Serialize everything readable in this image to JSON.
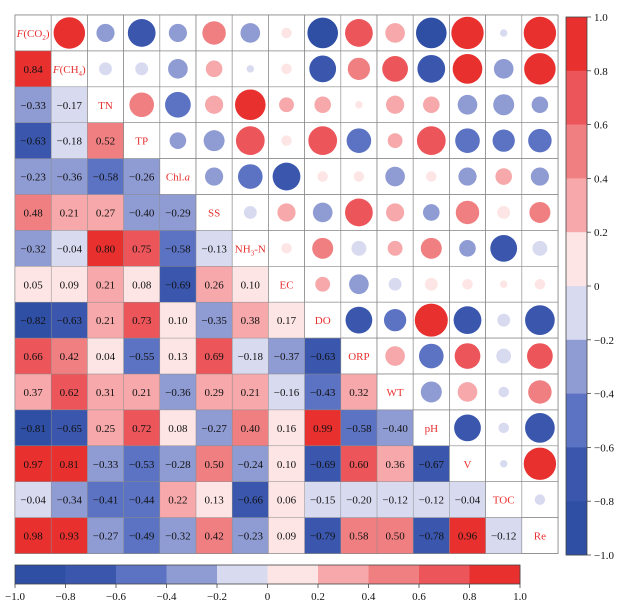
{
  "chart_data": {
    "type": "heatmap",
    "subtype": "correlation-matrix",
    "upper_triangle": "circles",
    "lower_triangle": "colored-cells-with-values",
    "variables": [
      {
        "text": "F(CO",
        "sub": "2",
        "suffix": ")",
        "italic_prefix": "F"
      },
      {
        "text": "F(CH",
        "sub": "4",
        "suffix": ")",
        "italic_prefix": "F"
      },
      {
        "text": "TN"
      },
      {
        "text": "TP"
      },
      {
        "text": "Chl.",
        "italic_suffix": "a"
      },
      {
        "text": "SS"
      },
      {
        "text": "NH",
        "sub": "3",
        "suffix": "-N"
      },
      {
        "text": "EC"
      },
      {
        "text": "DO"
      },
      {
        "text": "ORP"
      },
      {
        "text": "WT"
      },
      {
        "text": "pH"
      },
      {
        "text": "V"
      },
      {
        "text": "TOC"
      },
      {
        "text": "Re"
      }
    ],
    "lower_values": [
      [],
      [
        0.84
      ],
      [
        -0.33,
        -0.17
      ],
      [
        -0.63,
        -0.18,
        0.52
      ],
      [
        -0.23,
        -0.36,
        -0.58,
        -0.26
      ],
      [
        0.48,
        0.21,
        0.27,
        -0.4,
        -0.29
      ],
      [
        -0.32,
        -0.04,
        0.8,
        0.75,
        -0.58,
        -0.13
      ],
      [
        0.05,
        0.09,
        0.21,
        0.08,
        -0.69,
        0.26,
        0.1
      ],
      [
        -0.82,
        -0.63,
        0.21,
        0.73,
        0.1,
        -0.35,
        0.38,
        0.17
      ],
      [
        0.66,
        0.42,
        0.04,
        -0.55,
        0.13,
        0.69,
        -0.18,
        -0.37,
        -0.63
      ],
      [
        0.37,
        0.62,
        0.31,
        0.21,
        -0.36,
        0.29,
        0.21,
        -0.16,
        -0.43,
        0.32
      ],
      [
        -0.81,
        -0.65,
        0.25,
        0.72,
        0.08,
        -0.27,
        0.4,
        0.16,
        0.99,
        -0.58,
        -0.4
      ],
      [
        0.97,
        0.81,
        -0.33,
        -0.53,
        -0.28,
        0.5,
        -0.24,
        0.1,
        -0.69,
        0.6,
        0.36,
        -0.67
      ],
      [
        -0.04,
        -0.34,
        -0.41,
        -0.44,
        0.22,
        0.13,
        -0.66,
        0.06,
        -0.15,
        -0.2,
        -0.12,
        -0.12,
        -0.04
      ],
      [
        0.98,
        0.93,
        -0.27,
        -0.49,
        -0.32,
        0.42,
        -0.23,
        0.09,
        -0.79,
        0.58,
        0.5,
        -0.78,
        0.96,
        -0.12
      ]
    ],
    "upper_values": [
      [
        null,
        0.9,
        -0.3,
        -0.7,
        -0.3,
        0.5,
        -0.35,
        0.1,
        -0.85,
        0.7,
        0.35,
        -0.85,
        0.95,
        -0.05,
        0.95
      ],
      [
        null,
        null,
        -0.15,
        -0.15,
        -0.35,
        0.25,
        -0.05,
        0.1,
        -0.65,
        0.45,
        0.6,
        -0.7,
        0.8,
        -0.35,
        0.9
      ],
      [
        null,
        null,
        null,
        0.55,
        -0.6,
        0.3,
        0.85,
        0.2,
        0.25,
        0.05,
        0.3,
        0.25,
        -0.35,
        -0.4,
        -0.25
      ],
      [
        null,
        null,
        null,
        null,
        -0.25,
        -0.4,
        0.75,
        0.1,
        0.75,
        -0.55,
        0.2,
        0.75,
        -0.55,
        -0.45,
        -0.5
      ],
      [
        null,
        null,
        null,
        null,
        null,
        -0.3,
        -0.55,
        -0.7,
        0.1,
        0.1,
        -0.35,
        0.1,
        -0.3,
        0.25,
        -0.3
      ],
      [
        null,
        null,
        null,
        null,
        null,
        null,
        -0.15,
        0.3,
        -0.35,
        0.7,
        0.3,
        -0.25,
        0.5,
        0.15,
        0.4
      ],
      [
        null,
        null,
        null,
        null,
        null,
        null,
        null,
        0.1,
        0.4,
        -0.2,
        0.2,
        0.4,
        -0.25,
        -0.65,
        -0.2
      ],
      [
        null,
        null,
        null,
        null,
        null,
        null,
        null,
        null,
        0.2,
        -0.35,
        -0.15,
        0.15,
        0.1,
        0.05,
        0.1
      ],
      [
        null,
        null,
        null,
        null,
        null,
        null,
        null,
        null,
        null,
        -0.65,
        -0.45,
        0.99,
        -0.7,
        -0.15,
        -0.8
      ],
      [
        null,
        null,
        null,
        null,
        null,
        null,
        null,
        null,
        null,
        null,
        0.35,
        -0.55,
        0.6,
        -0.2,
        0.6
      ],
      [
        null,
        null,
        null,
        null,
        null,
        null,
        null,
        null,
        null,
        null,
        null,
        -0.4,
        0.35,
        -0.1,
        0.5
      ],
      [
        null,
        null,
        null,
        null,
        null,
        null,
        null,
        null,
        null,
        null,
        null,
        null,
        -0.65,
        -0.1,
        -0.8
      ],
      [
        null,
        null,
        null,
        null,
        null,
        null,
        null,
        null,
        null,
        null,
        null,
        null,
        null,
        -0.05,
        0.95
      ],
      [
        null,
        null,
        null,
        null,
        null,
        null,
        null,
        null,
        null,
        null,
        null,
        null,
        null,
        null,
        -0.1
      ]
    ],
    "color_scale": {
      "min": -1.0,
      "max": 1.0,
      "bins": [
        {
          "from": -1.0,
          "to": -0.8,
          "color": "#2f4fa5"
        },
        {
          "from": -0.8,
          "to": -0.6,
          "color": "#3a57ad"
        },
        {
          "from": -0.6,
          "to": -0.4,
          "color": "#5b73c2"
        },
        {
          "from": -0.4,
          "to": -0.2,
          "color": "#8f9bd3"
        },
        {
          "from": -0.2,
          "to": 0.0,
          "color": "#d8daf0"
        },
        {
          "from": 0.0,
          "to": 0.2,
          "color": "#fde5e5"
        },
        {
          "from": 0.2,
          "to": 0.4,
          "color": "#f6a8aa"
        },
        {
          "from": 0.4,
          "to": 0.6,
          "color": "#f07f82"
        },
        {
          "from": 0.6,
          "to": 0.8,
          "color": "#ec5559"
        },
        {
          "from": 0.8,
          "to": 1.0,
          "color": "#e8302f"
        }
      ],
      "right_ticks": [
        "1.0",
        "0.8",
        "0.6",
        "0.4",
        "0.2",
        "0",
        "−0.2",
        "−0.4",
        "−0.6",
        "−0.8",
        "−1.0"
      ],
      "bottom_ticks": [
        "−1.0",
        "−0.8",
        "−0.6",
        "−0.4",
        "−0.2",
        "0",
        "0.2",
        "0.4",
        "0.6",
        "0.8",
        "1.0"
      ]
    },
    "label_color": "#e8302f"
  }
}
